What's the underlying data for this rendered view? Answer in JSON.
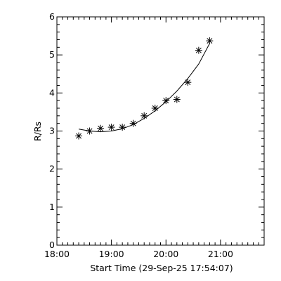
{
  "chart_data": {
    "type": "scatter",
    "title": "",
    "xlabel": "Start Time (29-Sep-25 17:54:07)",
    "ylabel": "R/Rs",
    "xlim": [
      "18:00",
      "21:48"
    ],
    "ylim": [
      0,
      6
    ],
    "x_ticks": [
      "18:00",
      "19:00",
      "20:00",
      "21:00"
    ],
    "y_ticks": [
      "0",
      "1",
      "2",
      "3",
      "4",
      "5",
      "6"
    ],
    "grid": false,
    "marker": "asterisk",
    "series": [
      {
        "x": [
          "18:24",
          "18:36",
          "18:48",
          "19:00",
          "19:12",
          "19:24",
          "19:36",
          "19:48",
          "20:00",
          "20:12",
          "20:24",
          "20:36",
          "20:48"
        ],
        "y": [
          2.87,
          3.0,
          3.07,
          3.1,
          3.1,
          3.2,
          3.4,
          3.6,
          3.8,
          3.83,
          4.28,
          5.12,
          5.37
        ]
      }
    ],
    "fit_curve": {
      "x": [
        "18:24",
        "18:36",
        "18:48",
        "19:00",
        "19:12",
        "19:24",
        "19:36",
        "19:48",
        "20:00",
        "20:12",
        "20:24",
        "20:36",
        "20:48"
      ],
      "y": [
        3.05,
        3.0,
        2.98,
        3.0,
        3.06,
        3.17,
        3.33,
        3.53,
        3.77,
        4.05,
        4.38,
        4.76,
        5.3
      ]
    }
  }
}
